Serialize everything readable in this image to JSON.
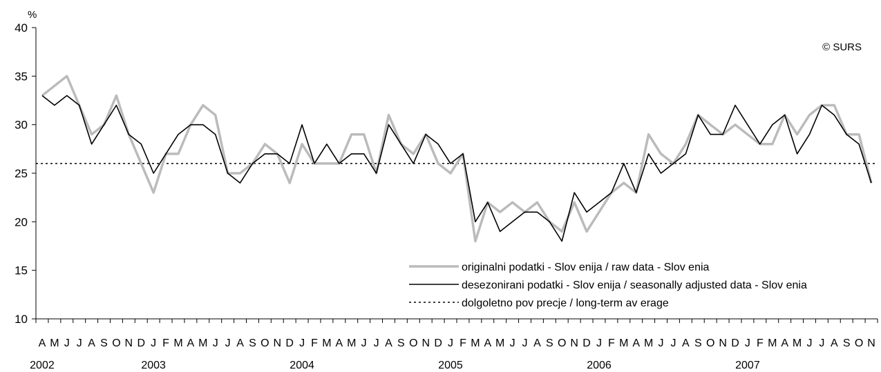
{
  "chart_data": {
    "type": "line",
    "unit_label": "%",
    "copyright": "© SURS",
    "ylim": [
      10,
      40
    ],
    "yticks": [
      10,
      15,
      20,
      25,
      30,
      35,
      40
    ],
    "months": [
      "A",
      "M",
      "J",
      "J",
      "A",
      "S",
      "O",
      "N",
      "D",
      "J",
      "F",
      "M",
      "A",
      "M",
      "J",
      "J",
      "A",
      "S",
      "O",
      "N",
      "D",
      "J",
      "F",
      "M",
      "A",
      "M",
      "J",
      "J",
      "A",
      "S",
      "O",
      "N",
      "D",
      "J",
      "F",
      "M",
      "A",
      "M",
      "J",
      "J",
      "A",
      "S",
      "O",
      "N",
      "D",
      "J",
      "F",
      "M",
      "A",
      "M",
      "J",
      "J",
      "A",
      "S",
      "O",
      "N",
      "D",
      "J",
      "F",
      "M",
      "A",
      "M",
      "J",
      "J",
      "A",
      "S",
      "O",
      "N"
    ],
    "years": [
      {
        "label": "2002",
        "index": 0
      },
      {
        "label": "2003",
        "index": 9
      },
      {
        "label": "2004",
        "index": 21
      },
      {
        "label": "2005",
        "index": 33
      },
      {
        "label": "2006",
        "index": 45
      },
      {
        "label": "2007",
        "index": 57
      }
    ],
    "series": [
      {
        "name": "originalni podatki - Slov enija / raw data - Slov enia",
        "color": "#bbbbbb",
        "style": "solid",
        "values": [
          33,
          34,
          35,
          32,
          29,
          30,
          33,
          29,
          26,
          23,
          27,
          27,
          30,
          32,
          31,
          25,
          25,
          26,
          28,
          27,
          24,
          28,
          26,
          26,
          26,
          29,
          29,
          25,
          31,
          28,
          27,
          29,
          26,
          25,
          27,
          18,
          22,
          21,
          22,
          21,
          22,
          20,
          19,
          22,
          19,
          21,
          23,
          24,
          23,
          29,
          27,
          26,
          28,
          31,
          30,
          29,
          30,
          29,
          28,
          28,
          31,
          29,
          31,
          32,
          32,
          29,
          29,
          24
        ]
      },
      {
        "name": "desezonirani podatki - Slov enija / seasonally adjusted data - Slov enia",
        "color": "#000000",
        "style": "solid",
        "values": [
          33,
          32,
          33,
          32,
          28,
          30,
          32,
          29,
          28,
          25,
          27,
          29,
          30,
          30,
          29,
          25,
          24,
          26,
          27,
          27,
          26,
          30,
          26,
          28,
          26,
          27,
          27,
          25,
          30,
          28,
          26,
          29,
          28,
          26,
          27,
          20,
          22,
          19,
          20,
          21,
          21,
          20,
          18,
          23,
          21,
          22,
          23,
          26,
          23,
          27,
          25,
          26,
          27,
          31,
          29,
          29,
          32,
          30,
          28,
          30,
          31,
          27,
          29,
          32,
          31,
          29,
          28,
          24
        ]
      },
      {
        "name": "dolgoletno pov precje / long-term av erage",
        "color": "#000000",
        "style": "dotted",
        "value": 26
      }
    ],
    "legend_position": "bottom-right",
    "grid": false
  }
}
